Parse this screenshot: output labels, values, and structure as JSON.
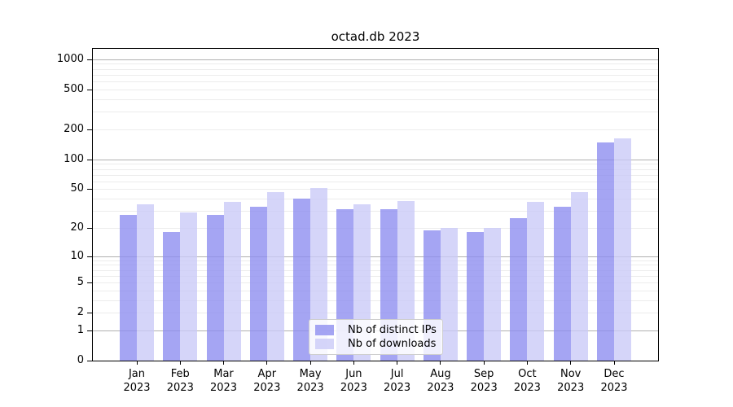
{
  "title": "octad.db 2023",
  "chart_data": {
    "type": "bar",
    "title": "octad.db 2023",
    "scale": "log10(1+x)",
    "grid": true,
    "legend_position": "lower center",
    "ylim": [
      0,
      1270
    ],
    "y_ticks": [
      0,
      1,
      2,
      5,
      10,
      20,
      50,
      100,
      200,
      500,
      1000
    ],
    "y_major_gridlines": [
      1,
      10,
      100,
      1000
    ],
    "y_minor_gridlines": [
      2,
      3,
      4,
      5,
      6,
      7,
      8,
      9,
      20,
      30,
      40,
      50,
      60,
      70,
      80,
      90,
      200,
      300,
      400,
      500,
      600,
      700,
      800,
      900
    ],
    "categories": [
      {
        "month": "Jan",
        "year": "2023"
      },
      {
        "month": "Feb",
        "year": "2023"
      },
      {
        "month": "Mar",
        "year": "2023"
      },
      {
        "month": "Apr",
        "year": "2023"
      },
      {
        "month": "May",
        "year": "2023"
      },
      {
        "month": "Jun",
        "year": "2023"
      },
      {
        "month": "Jul",
        "year": "2023"
      },
      {
        "month": "Aug",
        "year": "2023"
      },
      {
        "month": "Sep",
        "year": "2023"
      },
      {
        "month": "Oct",
        "year": "2023"
      },
      {
        "month": "Nov",
        "year": "2023"
      },
      {
        "month": "Dec",
        "year": "2023"
      }
    ],
    "series": [
      {
        "name": "Nb of distinct IPs",
        "color": "#8c8cf0",
        "values": [
          27,
          18,
          27,
          33,
          40,
          31,
          31,
          19,
          18,
          25,
          33,
          147
        ]
      },
      {
        "name": "Nb of downloads",
        "color": "#c9c9f7",
        "values": [
          35,
          29,
          37,
          47,
          51,
          35,
          38,
          20,
          20,
          37,
          47,
          163
        ]
      }
    ]
  },
  "colors": {
    "major_grid": "#b0b0b0",
    "minor_grid": "#ececec",
    "spine": "#000000",
    "text": "#000000",
    "legend_border": "#cfcfcf"
  }
}
